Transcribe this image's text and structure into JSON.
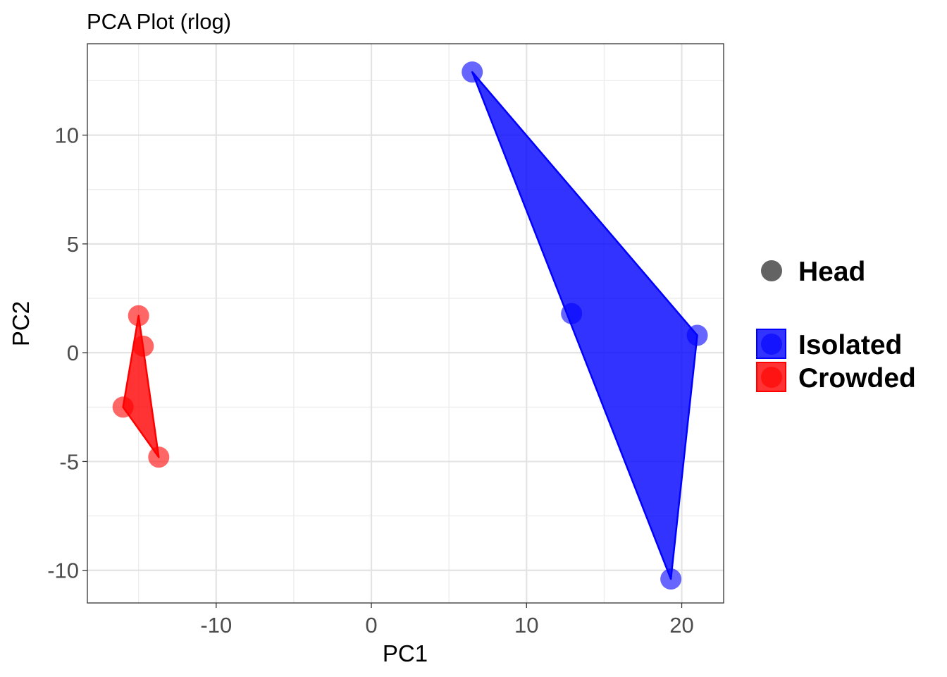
{
  "chart_data": {
    "type": "scatter",
    "title": "PCA Plot (rlog)",
    "xlabel": "PC1",
    "ylabel": "PC2",
    "xlim": [
      -18.3,
      22.7
    ],
    "ylim": [
      -11.5,
      14.2
    ],
    "x_ticks": [
      -10,
      0,
      10,
      20
    ],
    "y_ticks": [
      -10,
      -5,
      0,
      5,
      10
    ],
    "grid": true,
    "legend_position": "right",
    "shape_legend": {
      "label": "Head",
      "color": "#636363"
    },
    "series": [
      {
        "name": "Isolated",
        "color": "#0000ff",
        "points": [
          {
            "x": 6.5,
            "y": 12.9
          },
          {
            "x": 12.9,
            "y": 1.8
          },
          {
            "x": 21.0,
            "y": 0.8
          },
          {
            "x": 19.3,
            "y": -10.4
          }
        ],
        "hull": [
          0,
          2,
          3
        ]
      },
      {
        "name": "Crowded",
        "color": "#ff0000",
        "points": [
          {
            "x": -15.0,
            "y": 1.7
          },
          {
            "x": -14.7,
            "y": 0.3
          },
          {
            "x": -16.0,
            "y": -2.5
          },
          {
            "x": -13.7,
            "y": -4.8
          }
        ],
        "hull": [
          0,
          2,
          3
        ]
      }
    ]
  }
}
